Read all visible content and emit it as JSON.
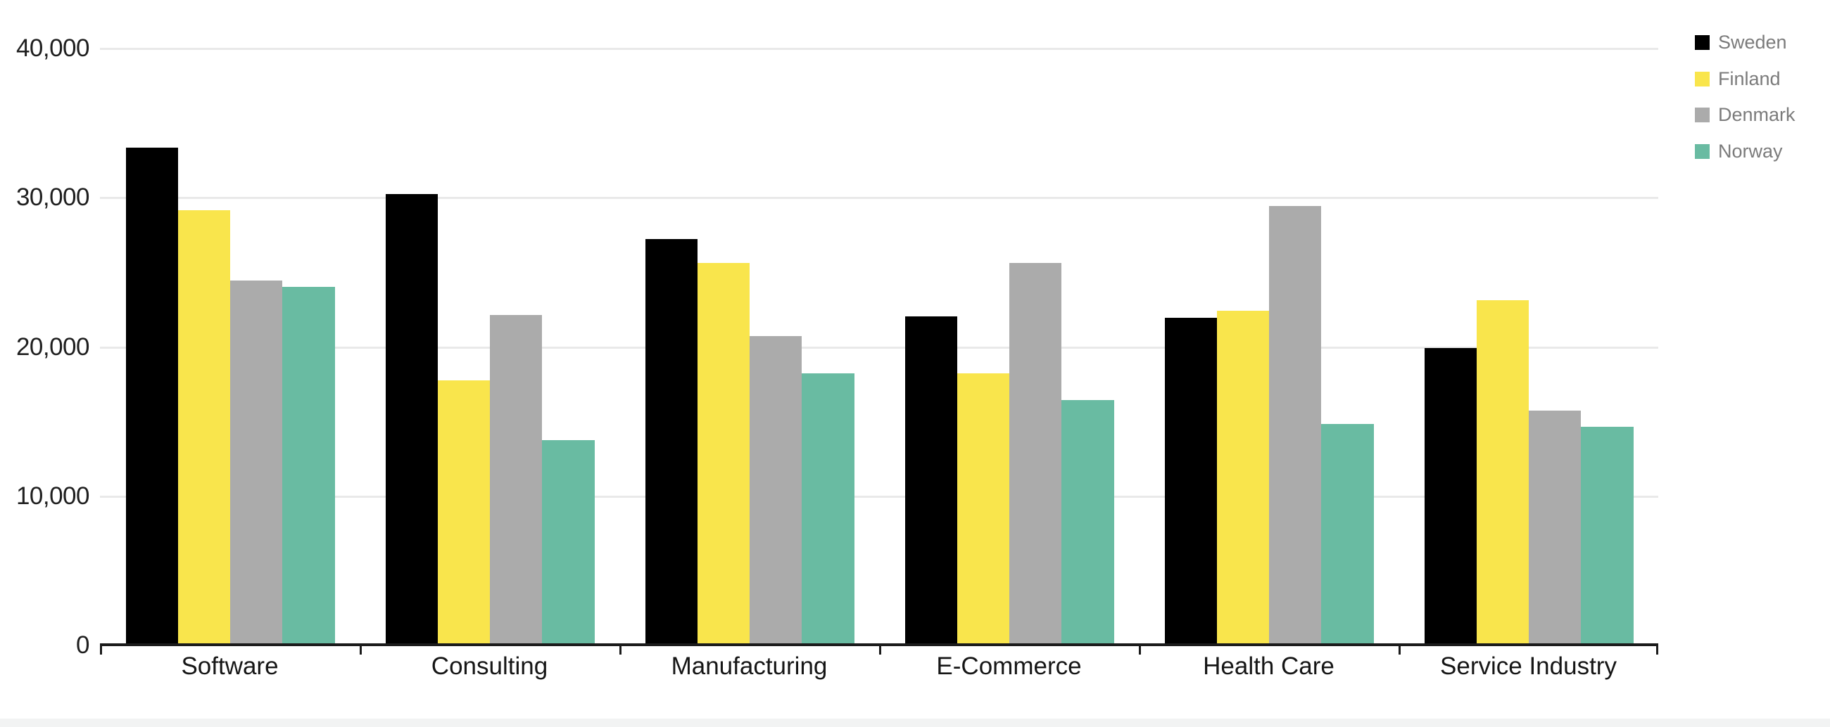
{
  "chart_data": {
    "type": "bar",
    "title": "",
    "xlabel": "",
    "ylabel": "",
    "categories": [
      "Software",
      "Consulting",
      "Manufacturing",
      "E-Commerce",
      "Health Care",
      "Service Industry"
    ],
    "series": [
      {
        "name": "Sweden",
        "color": "#000000",
        "values": [
          33300,
          30200,
          27200,
          22000,
          21900,
          19900
        ]
      },
      {
        "name": "Finland",
        "color": "#F9E54C",
        "values": [
          29100,
          17700,
          25600,
          18200,
          22400,
          23100
        ]
      },
      {
        "name": "Denmark",
        "color": "#ABABAB",
        "values": [
          24400,
          22100,
          20700,
          25600,
          29400,
          15700
        ]
      },
      {
        "name": "Norway",
        "color": "#69BBA2",
        "values": [
          24000,
          13700,
          18200,
          16400,
          14800,
          14600
        ]
      }
    ],
    "y_axis": {
      "range": [
        0,
        40000
      ],
      "grid": true,
      "ticks": [
        {
          "value": 0,
          "label": "0"
        },
        {
          "value": 10000,
          "label": "10,000"
        },
        {
          "value": 20000,
          "label": "20,000"
        },
        {
          "value": 30000,
          "label": "30,000"
        },
        {
          "value": 40000,
          "label": "40,000"
        }
      ]
    },
    "legend": {
      "position": "top-right",
      "entries": [
        "Sweden",
        "Finland",
        "Denmark",
        "Norway"
      ]
    }
  },
  "colors": {
    "background": "#FFFFFF",
    "gridline": "#E9E9E9",
    "axis": "#1B1B1B",
    "tick_label": "#1F1F1F",
    "category_label": "#161616",
    "legend_text": "#7B7B7B",
    "footer_strip": "#F2F3F3"
  }
}
